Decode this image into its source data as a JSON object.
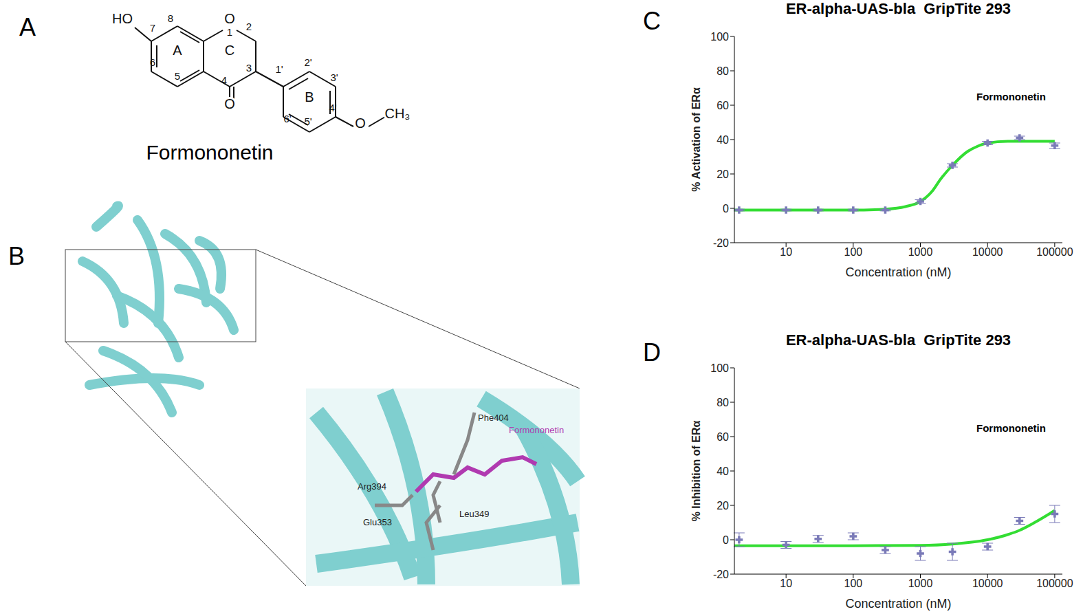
{
  "panels": {
    "A": {
      "label": "A",
      "structure_labels": [
        "HO",
        "7",
        "8",
        "O",
        "1",
        "2",
        "A",
        "C",
        "3",
        "6",
        "5",
        "4",
        "O",
        "1'",
        "2'",
        "3'",
        "B",
        "4'",
        "6'",
        "5'",
        "O",
        "CH₃"
      ],
      "compound": "Formononetin"
    },
    "B": {
      "label": "B",
      "residues": [
        "Phe404",
        "Arg394",
        "Glu353",
        "Leu349"
      ],
      "ligand": "Formononetin"
    }
  },
  "chart_data": [
    {
      "panel": "C",
      "type": "line",
      "title": "ER-alpha-UAS-bla  GripTite 293",
      "x_label": "Concentration (nM)",
      "y_label": "% Activation of ERα",
      "annotation": "Formononetin",
      "log": "x",
      "xlim": [
        1.7,
        130000
      ],
      "xticks": [
        10,
        100,
        1000,
        10000,
        100000
      ],
      "ylim": [
        -20,
        100
      ],
      "yticks": [
        -20,
        0,
        20,
        40,
        60,
        80,
        100
      ],
      "series": [
        {
          "type": "line",
          "color": "#33dd33",
          "x": [
            1.7,
            10,
            100,
            300,
            600,
            1000,
            1500,
            2000,
            3000,
            5000,
            7000,
            10000,
            20000,
            100000
          ],
          "values": [
            -1,
            -1,
            -1,
            -0.5,
            1,
            4,
            10,
            17,
            25,
            33,
            36,
            38,
            39,
            39
          ]
        },
        {
          "type": "scatter",
          "marker": "cross",
          "color": "#7a7ab8",
          "x": [
            2,
            10,
            30,
            100,
            300,
            1000,
            3000,
            10000,
            30000,
            100000
          ],
          "values": [
            -1,
            -1,
            -1,
            -1,
            -1,
            4,
            25,
            38,
            41,
            36.5
          ],
          "errors": [
            0.5,
            0.5,
            0.5,
            0.5,
            0.5,
            1,
            1,
            1,
            1,
            1.5
          ]
        }
      ]
    },
    {
      "panel": "D",
      "type": "line",
      "title": "ER-alpha-UAS-bla  GripTite 293",
      "x_label": "Concentration (nM)",
      "y_label": "% Inhibition of ERα",
      "annotation": "Formononetin",
      "log": "x",
      "xlim": [
        1.7,
        130000
      ],
      "xticks": [
        10,
        100,
        1000,
        10000,
        100000
      ],
      "ylim": [
        -20,
        100
      ],
      "yticks": [
        -20,
        0,
        20,
        40,
        60,
        80,
        100
      ],
      "series": [
        {
          "type": "line",
          "color": "#33dd33",
          "x": [
            1.7,
            100,
            1000,
            3000,
            10000,
            20000,
            30000,
            50000,
            100000
          ],
          "values": [
            -3.5,
            -3.5,
            -3.3,
            -2.5,
            0,
            3,
            5.5,
            10,
            17
          ]
        },
        {
          "type": "scatter",
          "marker": "cross",
          "color": "#7a7ab8",
          "x": [
            2,
            10,
            30,
            100,
            300,
            1000,
            3000,
            10000,
            30000,
            100000
          ],
          "values": [
            0,
            -3,
            0.5,
            2,
            -6,
            -8,
            -7,
            -4,
            11,
            15
          ],
          "errors": [
            4,
            2,
            2,
            2,
            2,
            4,
            5,
            2,
            2,
            5
          ]
        }
      ]
    }
  ]
}
